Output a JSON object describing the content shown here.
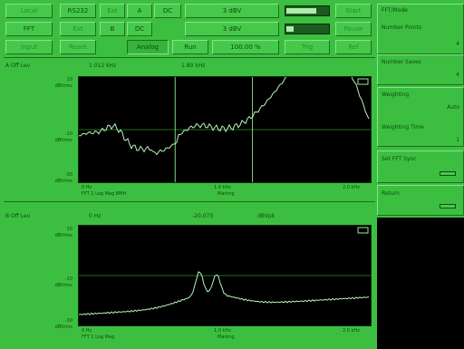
{
  "toolbar": {
    "row1": [
      "Local",
      "RS232",
      "Ext",
      "A",
      "DC",
      "3 dBV",
      "",
      "Start",
      "FFT",
      "Ext",
      "B",
      "DC",
      "3 dBV",
      "Pause",
      "Input",
      "Reset",
      "Analog",
      "Run",
      "100.00 %",
      "Trig",
      "Ref"
    ],
    "items": [
      {
        "label": "Local",
        "dim": true
      },
      {
        "label": "RS232",
        "dim": false
      },
      {
        "label": "Ext",
        "dim": true
      },
      {
        "label": "A",
        "dim": false
      },
      {
        "label": "DC",
        "dim": false
      },
      {
        "label": "3 dBV",
        "dim": false
      },
      {
        "label": "Start",
        "dim": true
      },
      {
        "label": "FFT",
        "dim": false
      },
      {
        "label": "Ext",
        "dim": true
      },
      {
        "label": "B",
        "dim": false
      },
      {
        "label": "DC",
        "dim": false
      },
      {
        "label": "3 dBV",
        "dim": false
      },
      {
        "label": "Pause",
        "dim": true
      },
      {
        "label": "Input",
        "dim": true
      },
      {
        "label": "Reset",
        "dim": true
      },
      {
        "label": "Analog",
        "dim": false
      },
      {
        "label": "Run",
        "dim": false
      },
      {
        "label": "100.00 %",
        "dim": false
      },
      {
        "label": "Trig",
        "dim": true
      },
      {
        "label": "Ref",
        "dim": true
      }
    ],
    "level_a": 0.72,
    "level_b": 0.18
  },
  "display_a": {
    "tag": "A Off Lev",
    "header": [
      "1.012 kHz",
      "1.80 kHz"
    ],
    "y_labels": [
      [
        "10",
        "dBVrms"
      ],
      [
        "-10",
        "dBVrms"
      ],
      [
        "-30",
        "dBVrms"
      ]
    ],
    "x_labels": [
      "0 Hz",
      "1.0 kHz",
      "2.0 kHz"
    ],
    "footer": [
      "FFT 1 Log Mag BMH",
      "Markng"
    ]
  },
  "display_b": {
    "tag": "B Off Lev",
    "header": [
      "0 Hz",
      "-20.073",
      "dBVpk"
    ],
    "y_labels": [
      [
        "10",
        "dBVrms"
      ],
      [
        "-10",
        "dBVrms"
      ],
      [
        "-30",
        "dBVrms"
      ]
    ],
    "x_labels": [
      "0 Hz",
      "1.0 kHz",
      "2.0 kHz"
    ],
    "footer": [
      "FFT 1 Log Mag",
      "Markng"
    ]
  },
  "right_panel": {
    "title": "FFT/Mode",
    "sections": [
      {
        "label": "Number Points",
        "value": "4"
      },
      {
        "label": "Number Saves",
        "value": "4"
      },
      {
        "label": "Weighting",
        "value": "Auto"
      },
      {
        "label": "Weighting Time",
        "value": "1"
      },
      {
        "label": "Set FFT Sync",
        "value": ""
      },
      {
        "label": "Return",
        "value": ""
      }
    ]
  },
  "colors": {
    "screen_bg": "#3cbf40",
    "plot_bg": "#000000",
    "trace": "#b7f5b9",
    "grid": "#1f6e22"
  }
}
